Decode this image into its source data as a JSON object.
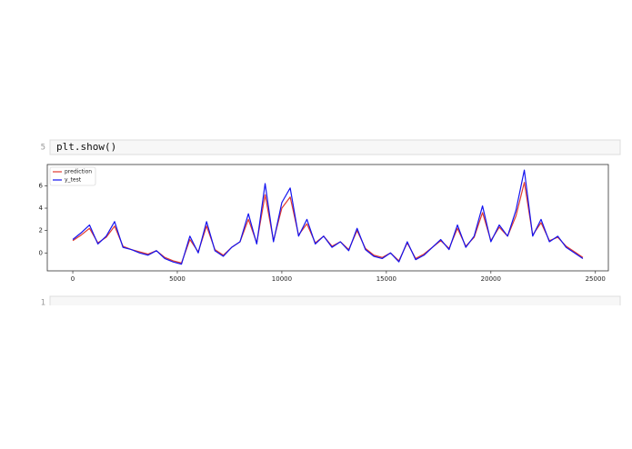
{
  "cells": [
    {
      "line_number": "5",
      "code": "plt.show()"
    },
    {
      "line_number": "1"
    }
  ],
  "chart_data": {
    "type": "line",
    "x": [
      0,
      400,
      800,
      1200,
      1600,
      2000,
      2400,
      2800,
      3200,
      3600,
      4000,
      4400,
      4800,
      5200,
      5600,
      6000,
      6400,
      6800,
      7200,
      7600,
      8000,
      8400,
      8800,
      9200,
      9600,
      10000,
      10400,
      10800,
      11200,
      11600,
      12000,
      12400,
      12800,
      13200,
      13600,
      14000,
      14400,
      14800,
      15200,
      15600,
      16000,
      16400,
      16800,
      17200,
      17600,
      18000,
      18400,
      18800,
      19200,
      19600,
      20000,
      20400,
      20800,
      21200,
      21600,
      22000,
      22400,
      22800,
      23200,
      23600,
      24000,
      24400
    ],
    "series": [
      {
        "name": "prediction",
        "color": "#e03a2f",
        "values": [
          1.1,
          1.6,
          2.2,
          0.9,
          1.4,
          2.4,
          0.6,
          0.3,
          0.1,
          -0.1,
          0.2,
          -0.4,
          -0.7,
          -0.9,
          1.2,
          0.1,
          2.4,
          0.3,
          -0.2,
          0.5,
          1.0,
          3.0,
          0.9,
          5.2,
          1.1,
          4.0,
          5.0,
          1.6,
          2.6,
          0.9,
          1.5,
          0.6,
          1.0,
          0.3,
          2.0,
          0.4,
          -0.2,
          -0.4,
          0.0,
          -0.7,
          0.9,
          -0.5,
          -0.1,
          0.5,
          1.1,
          0.4,
          2.2,
          0.6,
          1.4,
          3.6,
          1.1,
          2.3,
          1.5,
          3.3,
          6.3,
          1.6,
          2.7,
          1.1,
          1.4,
          0.6,
          0.1,
          -0.4
        ]
      },
      {
        "name": "y_test",
        "color": "#1414f0",
        "values": [
          1.2,
          1.8,
          2.5,
          0.8,
          1.5,
          2.8,
          0.5,
          0.3,
          0.0,
          -0.2,
          0.2,
          -0.5,
          -0.8,
          -1.0,
          1.5,
          0.0,
          2.8,
          0.2,
          -0.3,
          0.5,
          1.0,
          3.5,
          0.8,
          6.2,
          1.0,
          4.5,
          5.8,
          1.5,
          3.0,
          0.8,
          1.5,
          0.5,
          1.0,
          0.2,
          2.2,
          0.3,
          -0.3,
          -0.5,
          0.0,
          -0.8,
          1.0,
          -0.6,
          -0.2,
          0.5,
          1.2,
          0.3,
          2.5,
          0.5,
          1.5,
          4.2,
          1.0,
          2.5,
          1.5,
          3.8,
          7.4,
          1.5,
          3.0,
          1.0,
          1.5,
          0.5,
          0.0,
          -0.5
        ]
      }
    ],
    "xlim": [
      -1220,
      25620
    ],
    "xticks": [
      0,
      5000,
      10000,
      15000,
      20000,
      25000
    ],
    "ylim": [
      -1.6,
      7.9
    ],
    "yticks": [
      0,
      2,
      4,
      6
    ],
    "legend": "upper left",
    "grid": false
  }
}
